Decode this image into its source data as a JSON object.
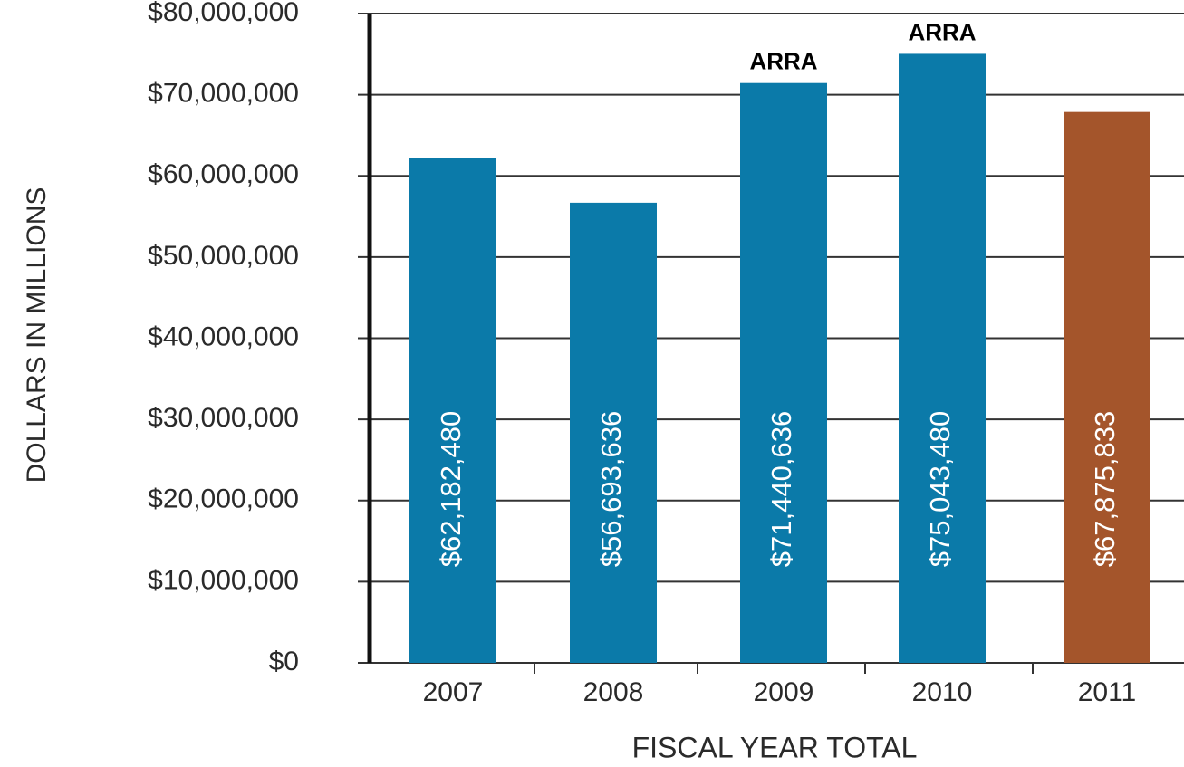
{
  "chart_data": {
    "type": "bar",
    "y_axis_label": "DOLLARS IN MILLIONS",
    "x_axis_label": "FISCAL YEAR TOTAL",
    "categories": [
      "2007",
      "2008",
      "2009",
      "2010",
      "2011"
    ],
    "values": [
      62182480,
      56693636,
      71440636,
      75043480,
      67875833
    ],
    "value_labels": [
      "$62,182,480",
      "$56,693,636",
      "$71,440,636",
      "$75,043,480",
      "$67,875,833"
    ],
    "colors": [
      "#0b7aa9",
      "#0b7aa9",
      "#0b7aa9",
      "#0b7aa9",
      "#a4552b"
    ],
    "annotations": [
      {
        "text": "ARRA",
        "category": "2009"
      },
      {
        "text": "ARRA",
        "category": "2010"
      }
    ],
    "ylim": [
      0,
      80000000
    ],
    "yticks": [
      {
        "value": 0,
        "label": "$0"
      },
      {
        "value": 10000000,
        "label": "$10,000,000"
      },
      {
        "value": 20000000,
        "label": "$20,000,000"
      },
      {
        "value": 30000000,
        "label": "$30,000,000"
      },
      {
        "value": 40000000,
        "label": "$40,000,000"
      },
      {
        "value": 50000000,
        "label": "$50,000,000"
      },
      {
        "value": 60000000,
        "label": "$60,000,000"
      },
      {
        "value": 70000000,
        "label": "$70,000,000"
      },
      {
        "value": 80000000,
        "label": "$80,000,000"
      }
    ],
    "grid": true
  }
}
